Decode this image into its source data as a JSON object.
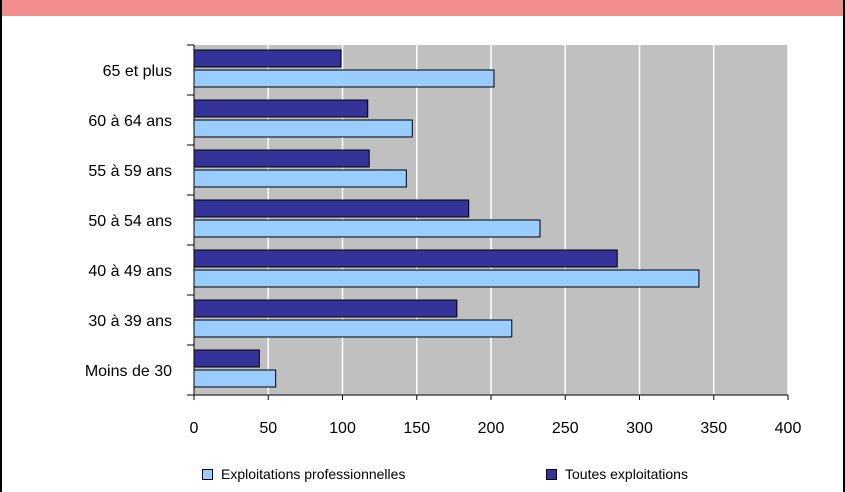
{
  "title": "",
  "chart_data": {
    "type": "bar",
    "orientation": "horizontal",
    "categories": [
      "Moins de 30",
      "30 à 39 ans",
      "40 à 49 ans",
      "50 à 54 ans",
      "55 à 59 ans",
      "60 à 64 ans",
      "65 et plus"
    ],
    "series": [
      {
        "name": "Toutes exploitations",
        "color": "#333399",
        "values": [
          44,
          177,
          285,
          185,
          118,
          117,
          99
        ]
      },
      {
        "name": "Exploitations professionnelles",
        "color": "#99ccff",
        "values": [
          55,
          214,
          340,
          233,
          143,
          147,
          202
        ]
      }
    ],
    "xlim": [
      0,
      400
    ],
    "xticks": [
      "0",
      "50",
      "100",
      "150",
      "200",
      "250",
      "300",
      "350",
      "400"
    ],
    "plot_background": "#c0c0c0",
    "grid": true,
    "legend": [
      {
        "label": "Exploitations professionnelles",
        "color": "#99ccff"
      },
      {
        "label": "Toutes exploitations",
        "color": "#333399"
      }
    ],
    "legend_position": "bottom"
  }
}
